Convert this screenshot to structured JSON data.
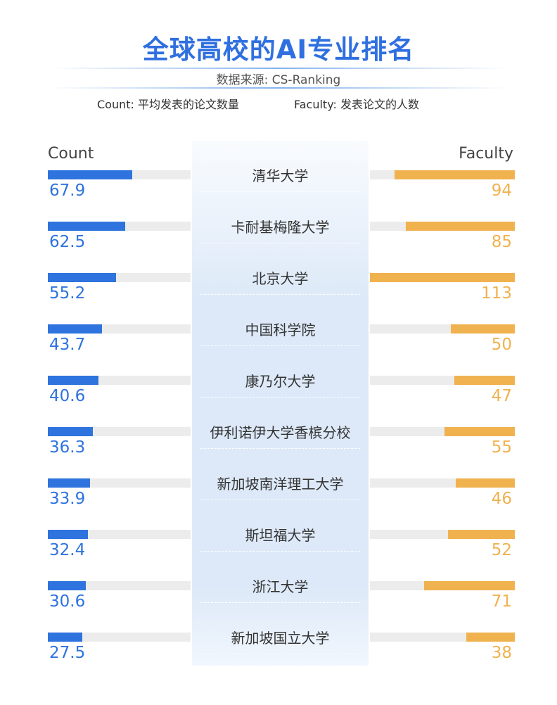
{
  "header": {
    "title": "全球高校的AI专业排名",
    "source": "数据来源: CS-Ranking",
    "count_note": "Count: 平均发表的论文数量",
    "faculty_note": "Faculty: 发表论文的人数"
  },
  "colors": {
    "count": "#2e73de",
    "faculty": "#f0b24f",
    "title": "#2f6fe0"
  },
  "chart_data": {
    "type": "bar",
    "layout": "butterfly",
    "categories": [
      "清华大学",
      "卡耐基梅隆大学",
      "北京大学",
      "中国科学院",
      "康乃尔大学",
      "伊利诺伊大学香槟分校",
      "新加坡南洋理工大学",
      "斯坦福大学",
      "浙江大学",
      "新加坡国立大学"
    ],
    "series": [
      {
        "name": "Count",
        "values": [
          "67.9",
          "62.5",
          "55.2",
          "43.7",
          "40.6",
          "36.3",
          "33.9",
          "32.4",
          "30.6",
          "27.5"
        ],
        "max": 115
      },
      {
        "name": "Faculty",
        "values": [
          "94",
          "85",
          "113",
          "50",
          "47",
          "55",
          "46",
          "52",
          "71",
          "38"
        ],
        "max": 113
      }
    ]
  }
}
